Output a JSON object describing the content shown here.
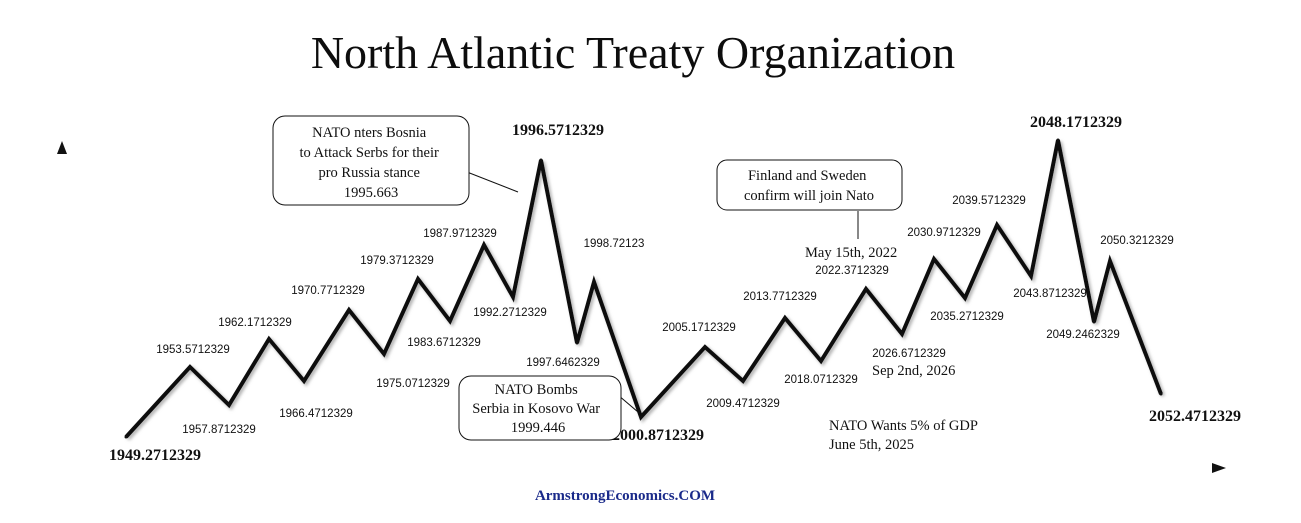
{
  "title": "North Atlantic Treaty Organization",
  "footer": "ArmstrongEconomics.COM",
  "colors": {
    "line": "#111111",
    "footer": "#1a2a8a",
    "background": "#ffffff"
  },
  "chart_data": {
    "type": "line",
    "title": "North Atlantic Treaty Organization",
    "xlabel": "",
    "ylabel": "",
    "grid": false,
    "points": [
      {
        "label": "1949.2712329",
        "kind": "low",
        "major": true
      },
      {
        "label": "1953.5712329",
        "kind": "high",
        "major": false
      },
      {
        "label": "1957.8712329",
        "kind": "low",
        "major": false
      },
      {
        "label": "1962.1712329",
        "kind": "high",
        "major": false
      },
      {
        "label": "1966.4712329",
        "kind": "low",
        "major": false
      },
      {
        "label": "1970.7712329",
        "kind": "high",
        "major": false
      },
      {
        "label": "1975.0712329",
        "kind": "low",
        "major": false
      },
      {
        "label": "1979.3712329",
        "kind": "high",
        "major": false
      },
      {
        "label": "1983.6712329",
        "kind": "low",
        "major": false
      },
      {
        "label": "1987.9712329",
        "kind": "high",
        "major": false
      },
      {
        "label": "1992.2712329",
        "kind": "low",
        "major": false
      },
      {
        "label": "1996.5712329",
        "kind": "high",
        "major": true
      },
      {
        "label": "1997.6462329",
        "kind": "low",
        "major": false
      },
      {
        "label": "1998.72123",
        "kind": "high",
        "major": false
      },
      {
        "label": "2000.8712329",
        "kind": "low",
        "major": true
      },
      {
        "label": "2005.1712329",
        "kind": "high",
        "major": false
      },
      {
        "label": "2009.4712329",
        "kind": "low",
        "major": false
      },
      {
        "label": "2013.7712329",
        "kind": "high",
        "major": false
      },
      {
        "label": "2018.0712329",
        "kind": "low",
        "major": false
      },
      {
        "label": "2022.3712329",
        "kind": "high",
        "major": false
      },
      {
        "label": "2026.6712329",
        "kind": "low",
        "major": false
      },
      {
        "label": "2030.9712329",
        "kind": "high",
        "major": false
      },
      {
        "label": "2035.2712329",
        "kind": "low",
        "major": false
      },
      {
        "label": "2039.5712329",
        "kind": "high",
        "major": false
      },
      {
        "label": "2043.8712329",
        "kind": "low",
        "major": false
      },
      {
        "label": "2048.1712329",
        "kind": "high",
        "major": true
      },
      {
        "label": "2049.2462329",
        "kind": "low",
        "major": false
      },
      {
        "label": "2050.3212329",
        "kind": "high",
        "major": false
      },
      {
        "label": "2052.4712329",
        "kind": "low",
        "major": true
      }
    ],
    "annotations": [
      {
        "lines": [
          "NATO nters Bosnia",
          "to Attack Serbs for their",
          "pro Russia stance",
          "1995.663"
        ],
        "boxed": true
      },
      {
        "lines": [
          "Finland and Sweden",
          "confirm will join Nato"
        ],
        "boxed": true
      },
      {
        "lines": [
          "May 15th, 2022"
        ],
        "boxed": false
      },
      {
        "lines": [
          "NATO Bombs",
          "Serbia in Kosovo War",
          "1999.446"
        ],
        "boxed": true
      },
      {
        "lines": [
          "Sep 2nd, 2026"
        ],
        "boxed": false
      },
      {
        "lines": [
          "NATO Wants 5% of GDP",
          "June 5th, 2025"
        ],
        "boxed": false
      }
    ]
  }
}
